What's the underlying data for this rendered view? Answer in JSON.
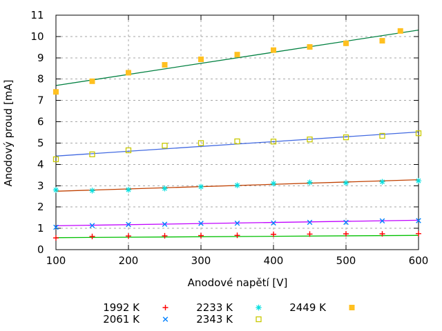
{
  "chart_data": {
    "type": "scatter",
    "title": "",
    "xlabel": "Anodové napětí [V]",
    "ylabel": "Anodový proud [mA]",
    "xlim": [
      100,
      600
    ],
    "ylim": [
      0,
      11
    ],
    "xticks": [
      100,
      200,
      300,
      400,
      500,
      600
    ],
    "yticks": [
      0,
      1,
      2,
      3,
      4,
      5,
      6,
      7,
      8,
      9,
      10,
      11
    ],
    "grid": true,
    "legend_position": "bottom-center-below-plot",
    "default_x": [
      100,
      150,
      200,
      250,
      300,
      350,
      400,
      450,
      500,
      550,
      600
    ],
    "series": [
      {
        "name": "1992 K",
        "marker": "plus",
        "point_color": "#ff0000",
        "line_color": "#00c000",
        "values": [
          0.55,
          0.62,
          0.64,
          0.65,
          0.66,
          0.67,
          0.72,
          0.73,
          0.74,
          0.74,
          0.75
        ],
        "fit_endpoints": [
          0.56,
          0.67
        ]
      },
      {
        "name": "2061 K",
        "marker": "cross",
        "point_color": "#0080ff",
        "line_color": "#c000ff",
        "values": [
          1.05,
          1.13,
          1.18,
          1.19,
          1.23,
          1.24,
          1.25,
          1.28,
          1.28,
          1.35,
          1.36
        ],
        "fit_endpoints": [
          1.12,
          1.38
        ]
      },
      {
        "name": "2233 K",
        "marker": "asterisk",
        "point_color": "#00dede",
        "line_color": "#c04000",
        "values": [
          2.8,
          2.77,
          2.81,
          2.87,
          2.95,
          3.02,
          3.1,
          3.15,
          3.13,
          3.18,
          3.23
        ],
        "fit_endpoints": [
          2.74,
          3.28
        ]
      },
      {
        "name": "2343 K",
        "marker": "open-square",
        "point_color": "#c8c800",
        "line_color": "#4169e1",
        "values": [
          4.24,
          4.47,
          4.66,
          4.88,
          5.0,
          5.08,
          5.07,
          5.17,
          5.27,
          5.34,
          5.46
        ],
        "fit_endpoints": [
          4.39,
          5.52
        ]
      },
      {
        "name": "2449 K",
        "marker": "filled-square",
        "point_color": "#ffc020",
        "line_color": "#008040",
        "x": [
          100,
          150,
          200,
          250,
          300,
          350,
          400,
          450,
          500,
          550,
          575
        ],
        "values": [
          7.4,
          7.9,
          8.3,
          8.67,
          8.93,
          9.15,
          9.36,
          9.51,
          9.68,
          9.8,
          10.26
        ],
        "fit_endpoints": [
          7.7,
          10.3
        ]
      }
    ]
  },
  "colors": {
    "background": "#ffffff",
    "axis": "#000000",
    "grid": "#a6a6a6",
    "text": "#000000"
  }
}
